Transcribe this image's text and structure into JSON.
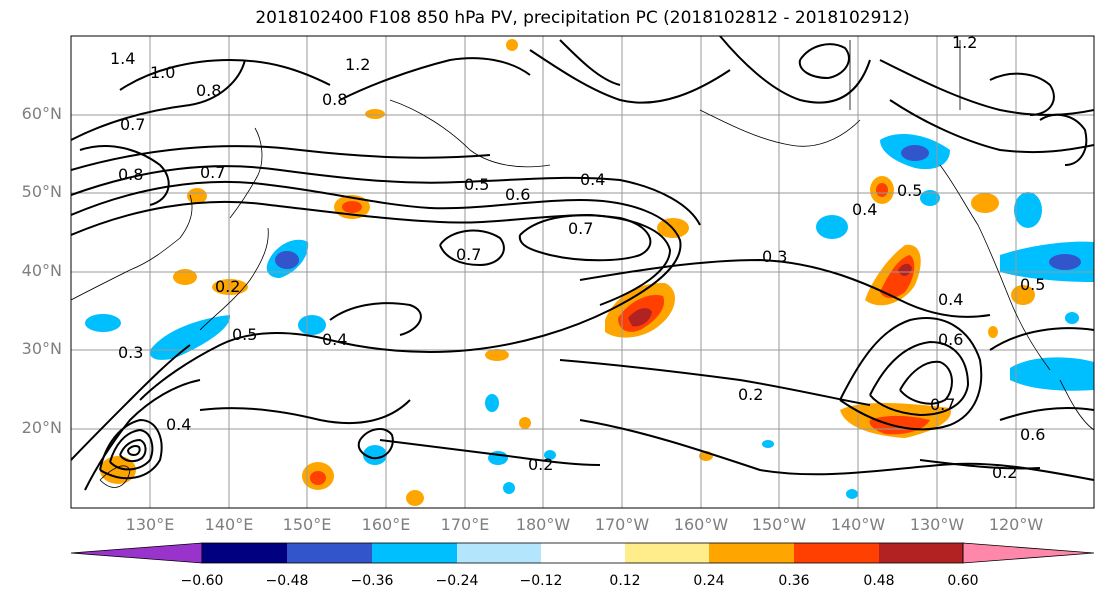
{
  "title": "2018102400 F108 850 hPa PV, precipitation PC (2018102812 - 2018102912)",
  "lat_labels": [
    "60°N",
    "50°N",
    "40°N",
    "30°N",
    "20°N"
  ],
  "lon_labels": [
    "130°E",
    "140°E",
    "150°E",
    "160°E",
    "170°E",
    "180°W",
    "170°W",
    "160°W",
    "150°W",
    "140°W",
    "130°W",
    "120°W"
  ],
  "colorbar": {
    "colors": [
      "#9933cc",
      "#000080",
      "#3355cc",
      "#00bfff",
      "#b3e5fc",
      "#ffffff",
      "#ffec8b",
      "#ffa500",
      "#ff4000",
      "#b22222",
      "#ff88aa"
    ],
    "tick_labels": [
      "−0.60",
      "−0.48",
      "−0.36",
      "−0.24",
      "−0.12",
      "0.12",
      "0.24",
      "0.36",
      "0.48",
      "0.60"
    ]
  },
  "contour_labels": [
    {
      "text": "1.4"
    },
    {
      "text": "1.0"
    },
    {
      "text": "0.8"
    },
    {
      "text": "1.2"
    },
    {
      "text": "0.8"
    },
    {
      "text": "0.7"
    },
    {
      "text": "0.8"
    },
    {
      "text": "0.7"
    },
    {
      "text": "0.5"
    },
    {
      "text": "0.6"
    },
    {
      "text": "0.4"
    },
    {
      "text": "0.7"
    },
    {
      "text": "0.7"
    },
    {
      "text": "0.3"
    },
    {
      "text": "0.5"
    },
    {
      "text": "0.4"
    },
    {
      "text": "0.3"
    },
    {
      "text": "0.5"
    },
    {
      "text": "0.4"
    },
    {
      "text": "0.2"
    },
    {
      "text": "0.2"
    },
    {
      "text": "0.2"
    },
    {
      "text": "0.6"
    },
    {
      "text": "0.7"
    },
    {
      "text": "0.2"
    },
    {
      "text": "0.4"
    },
    {
      "text": "0.6"
    },
    {
      "text": "1.2"
    },
    {
      "text": "0.4"
    },
    {
      "text": "0.5"
    }
  ]
}
